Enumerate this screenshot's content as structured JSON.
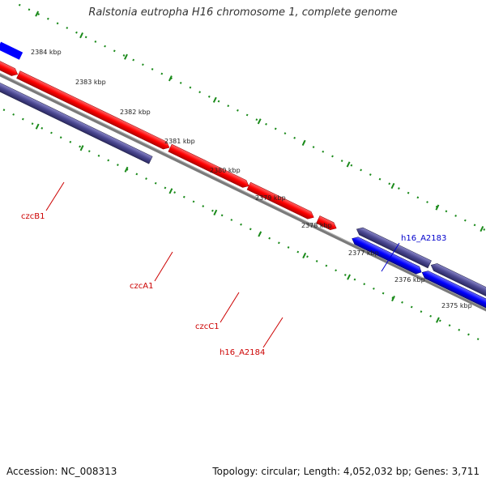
{
  "title": "Ralstonia eutropha H16 chromosome 1, complete genome",
  "footer": {
    "accession": "Accession: NC_008313",
    "summary": "Topology: circular; Length: 4,052,032 bp; Genes: 3,711"
  },
  "colors": {
    "forward_cds": "#ff0000",
    "reverse_cds": "#0000ff",
    "reverse_other": "#4a4790",
    "backbone": "#808080",
    "ticks": "#1a8a1a",
    "label_red": "#cc0000",
    "label_blue": "#0000cc"
  },
  "ruler": {
    "unit": "kbp",
    "ticks": [
      "2384 kbp",
      "2383 kbp",
      "2382 kbp",
      "2381 kbp",
      "2380 kbp",
      "2379 kbp",
      "2378 kbp",
      "2377 kbp",
      "2376 kbp",
      "2375 kbp"
    ]
  },
  "gene_labels": {
    "czcB1": "czcB1",
    "czcA1": "czcA1",
    "czcC1": "czcC1",
    "h16_A2184": "h16_A2184",
    "h16_A2183": "h16_A2183"
  }
}
